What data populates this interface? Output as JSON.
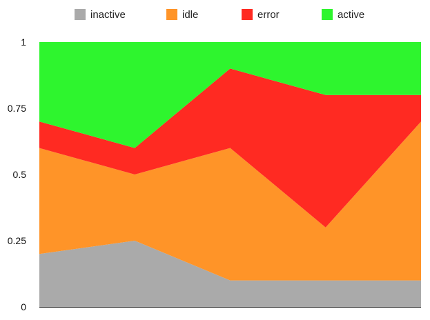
{
  "chart_data": {
    "type": "area",
    "stacked": true,
    "normalized": true,
    "x": [
      0,
      1,
      2,
      3,
      4
    ],
    "series": [
      {
        "name": "inactive",
        "color": "#aaaaaa",
        "values": [
          0.2,
          0.25,
          0.1,
          0.1,
          0.1
        ]
      },
      {
        "name": "idle",
        "color": "#ff9428",
        "values": [
          0.4,
          0.25,
          0.5,
          0.2,
          0.6
        ]
      },
      {
        "name": "error",
        "color": "#ff2a22",
        "values": [
          0.1,
          0.1,
          0.3,
          0.5,
          0.1
        ]
      },
      {
        "name": "active",
        "color": "#2ef52e",
        "values": [
          0.3,
          0.4,
          0.1,
          0.2,
          0.2
        ]
      }
    ],
    "ylim": [
      0,
      1
    ],
    "yticks": [
      0,
      0.25,
      0.5,
      0.75,
      1
    ],
    "ytick_labels": [
      "0",
      "0.25",
      "0.5",
      "0.75",
      "1"
    ],
    "legend_position": "top",
    "grid": false,
    "title": "",
    "xlabel": "",
    "ylabel": ""
  }
}
